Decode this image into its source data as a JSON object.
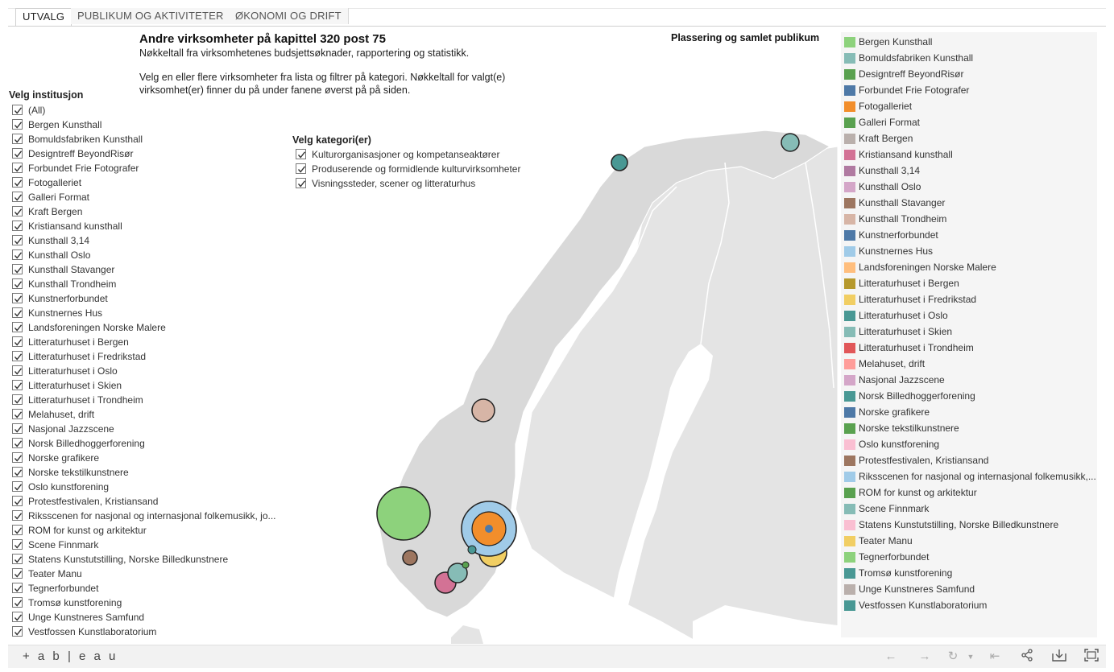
{
  "tabs": [
    {
      "label": "UTVALG",
      "active": true
    },
    {
      "label": "PUBLIKUM OG AKTIVITETER",
      "active": false
    },
    {
      "label": "ØKONOMI OG DRIFT",
      "active": false
    }
  ],
  "header": {
    "title": "Andre virksomheter på kapittel 320 post 75",
    "subtitle": "Nøkkeltall fra virksomhetenes budsjettsøknader, rapportering og statistikk.",
    "intro": "Velg en eller flere virksomheter fra lista og filtrer på kategori. Nøkkeltall for valgt(e) virksomhet(er) finner du på under fanene øverst på på siden."
  },
  "map_title": "Plassering og samlet publikum",
  "institution_filter": {
    "title": "Velg institusjon",
    "items": [
      "(All)",
      "Bergen Kunsthall",
      "Bomuldsfabriken Kunsthall",
      "Designtreff BeyondRisør",
      "Forbundet Frie Fotografer",
      "Fotogalleriet",
      "Galleri Format",
      "Kraft Bergen",
      "Kristiansand kunsthall",
      "Kunsthall 3,14",
      "Kunsthall Oslo",
      "Kunsthall Stavanger",
      "Kunsthall Trondheim",
      "Kunstnerforbundet",
      "Kunstnernes Hus",
      "Landsforeningen Norske Malere",
      "Litteraturhuset i Bergen",
      "Litteraturhuset i Fredrikstad",
      "Litteraturhuset i Oslo",
      "Litteraturhuset i Skien",
      "Litteraturhuset i Trondheim",
      "Melahuset, drift",
      "Nasjonal Jazzscene",
      "Norsk Billedhoggerforening",
      "Norske grafikere",
      "Norske tekstilkunstnere",
      "Oslo kunstforening",
      "Protestfestivalen, Kristiansand",
      "Riksscenen for nasjonal og internasjonal folkemusikk, jo...",
      "ROM for kunst og arkitektur",
      "Scene Finnmark",
      "Statens Kunstutstilling, Norske Billedkunstnere",
      "Teater Manu",
      "Tegnerforbundet",
      "Tromsø kunstforening",
      "Unge Kunstneres Samfund",
      "Vestfossen Kunstlaboratorium"
    ]
  },
  "category_filter": {
    "title": "Velg kategori(er)",
    "items": [
      "Kulturorganisasjoner og kompetanseaktører",
      "Produserende og formidlende kulturvirksomheter",
      "Visningssteder, scener og litteraturhus"
    ]
  },
  "legend": [
    {
      "label": "Bergen Kunsthall",
      "color": "#8dd27c"
    },
    {
      "label": "Bomuldsfabriken Kunsthall",
      "color": "#86bcb6"
    },
    {
      "label": "Designtreff BeyondRisør",
      "color": "#59a14f"
    },
    {
      "label": "Forbundet Frie Fotografer",
      "color": "#4e79a7"
    },
    {
      "label": "Fotogalleriet",
      "color": "#f28e2b"
    },
    {
      "label": "Galleri Format",
      "color": "#59a14f"
    },
    {
      "label": "Kraft Bergen",
      "color": "#bab0ac"
    },
    {
      "label": "Kristiansand kunsthall",
      "color": "#d37295"
    },
    {
      "label": "Kunsthall 3,14",
      "color": "#b07aa1"
    },
    {
      "label": "Kunsthall Oslo",
      "color": "#d4a6c8"
    },
    {
      "label": "Kunsthall Stavanger",
      "color": "#9d7660"
    },
    {
      "label": "Kunsthall Trondheim",
      "color": "#d7b5a6"
    },
    {
      "label": "Kunstnerforbundet",
      "color": "#4e79a7"
    },
    {
      "label": "Kunstnernes Hus",
      "color": "#a0cbe8"
    },
    {
      "label": "Landsforeningen Norske Malere",
      "color": "#ffbe7d"
    },
    {
      "label": "Litteraturhuset i Bergen",
      "color": "#b6992d"
    },
    {
      "label": "Litteraturhuset i Fredrikstad",
      "color": "#f1ce63"
    },
    {
      "label": "Litteraturhuset i Oslo",
      "color": "#499894"
    },
    {
      "label": "Litteraturhuset i Skien",
      "color": "#86bcb6"
    },
    {
      "label": "Litteraturhuset i Trondheim",
      "color": "#e15759"
    },
    {
      "label": "Melahuset, drift",
      "color": "#ff9d9a"
    },
    {
      "label": "Nasjonal Jazzscene",
      "color": "#d4a6c8"
    },
    {
      "label": "Norsk Billedhoggerforening",
      "color": "#499894"
    },
    {
      "label": "Norske grafikere",
      "color": "#4e79a7"
    },
    {
      "label": "Norske tekstilkunstnere",
      "color": "#59a14f"
    },
    {
      "label": "Oslo kunstforening",
      "color": "#fabfd2"
    },
    {
      "label": "Protestfestivalen, Kristiansand",
      "color": "#9d7660"
    },
    {
      "label": "Riksscenen for nasjonal og internasjonal folkemusikk,...",
      "color": "#a0cbe8"
    },
    {
      "label": "ROM for kunst og arkitektur",
      "color": "#59a14f"
    },
    {
      "label": "Scene Finnmark",
      "color": "#86bcb6"
    },
    {
      "label": "Statens Kunstutstilling, Norske Billedkunstnere",
      "color": "#fabfd2"
    },
    {
      "label": "Teater Manu",
      "color": "#f1ce63"
    },
    {
      "label": "Tegnerforbundet",
      "color": "#8dd27c"
    },
    {
      "label": "Tromsø kunstforening",
      "color": "#499894"
    },
    {
      "label": "Unge Kunstneres Samfund",
      "color": "#bab0ac"
    },
    {
      "label": "Vestfossen Kunstlaboratorium",
      "color": "#499894"
    }
  ],
  "toolbar": {
    "logo": "+ a b | e a u",
    "icons": [
      "undo-icon",
      "redo-icon",
      "revert-icon",
      "dropdown-icon",
      "reset-icon",
      "share-icon",
      "download-icon",
      "fullscreen-icon"
    ]
  }
}
